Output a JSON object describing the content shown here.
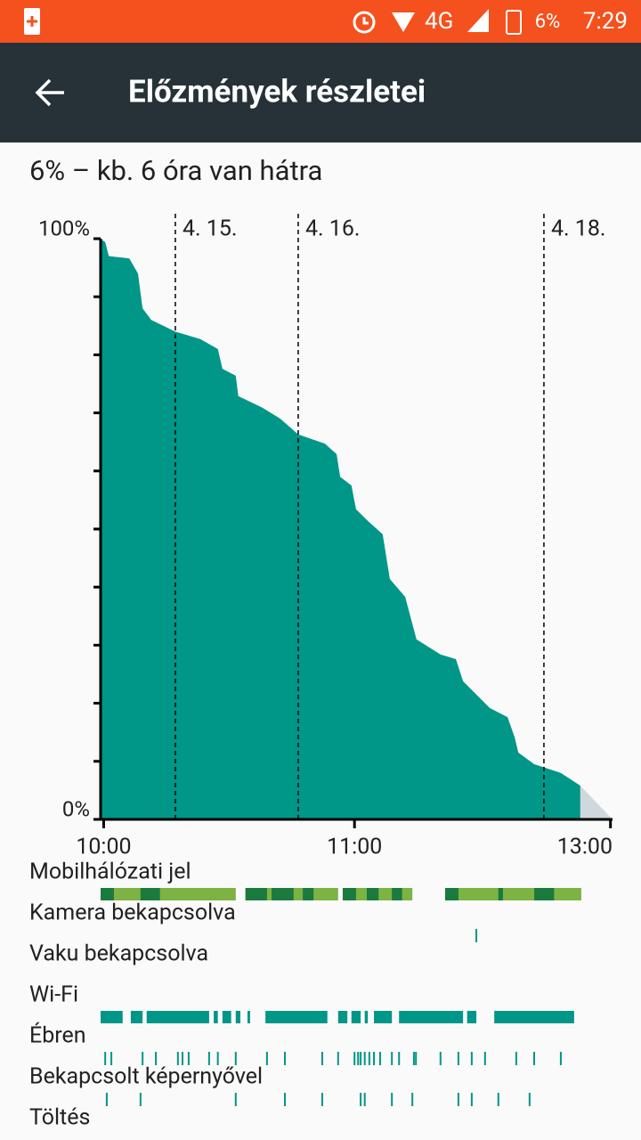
{
  "status_bar": {
    "network": "4G",
    "battery": "6%",
    "time": "7:29"
  },
  "app_bar": {
    "title": "Előzmények részletei"
  },
  "summary": "6% – kb. 6 óra van hátra",
  "chart_data": {
    "type": "area",
    "color": "#009688",
    "x": [
      -14.6,
      -13.7,
      -13,
      -9,
      -7.3,
      -6.4,
      -4.7,
      0,
      4.9,
      8.3,
      9.2,
      11.8,
      12.3,
      17,
      20.5,
      24,
      29.2,
      31.5,
      32.2,
      34.4,
      35.3,
      37.6,
      40.5,
      41.9,
      44.9,
      47.1,
      51.8,
      54.8,
      56.2,
      61.4,
      64.9,
      66.3,
      67,
      70.1,
      75.3,
      79.1
    ],
    "values": [
      100,
      99.4,
      97,
      96.6,
      94,
      88,
      86,
      84,
      82.7,
      81,
      77.6,
      76.4,
      72.9,
      70.9,
      69,
      66.3,
      64.7,
      62.9,
      59,
      57.5,
      53.4,
      51.4,
      49.1,
      41.4,
      38.3,
      31,
      28.4,
      27.6,
      23.8,
      19.2,
      17.6,
      14.1,
      11.5,
      9.5,
      8,
      5.8
    ],
    "projection": {
      "x": [
        79.1,
        85.4
      ],
      "values": [
        5.8,
        0
      ],
      "color": "#cfd8dc"
    },
    "xlim": [
      -14.6,
      85.4
    ],
    "ylim": [
      0,
      100
    ],
    "yticks": [
      {
        "value": 100,
        "label": "100%"
      },
      {
        "value": 0,
        "label": "0%"
      }
    ],
    "minor_yticks": [
      10,
      20,
      30,
      40,
      50,
      60,
      70,
      80,
      90
    ],
    "xticks": [
      {
        "value": -14,
        "label": "10:00"
      },
      {
        "value": 35,
        "label": "11:00"
      },
      {
        "value": 85,
        "label": "13:00"
      }
    ],
    "markers": [
      {
        "value": 0,
        "label": "4. 15."
      },
      {
        "value": 24,
        "label": "4. 16."
      },
      {
        "value": 72,
        "label": "4. 18."
      }
    ]
  },
  "rows": [
    {
      "label": "Mobilhálózati jel",
      "color": "#7cb342",
      "segments": [
        [
          -14.6,
          11.8
        ],
        [
          13.7,
          31.8
        ],
        [
          32.7,
          46.3
        ],
        [
          52.7,
          79.3
        ]
      ],
      "strong_color": "#1b7a3e",
      "strong_segments": [
        [
          -14.6,
          -12
        ],
        [
          -6.8,
          -3
        ],
        [
          13.7,
          17.9
        ],
        [
          18.8,
          23.1
        ],
        [
          24.9,
          27
        ],
        [
          32.7,
          35.3
        ],
        [
          37.4,
          39.7
        ],
        [
          42.3,
          44.3
        ],
        [
          52.7,
          55.3
        ],
        [
          63.1,
          64
        ],
        [
          70.1,
          74
        ]
      ]
    },
    {
      "label": "Kamera bekapcsolva",
      "color": "#009688",
      "ticks": [
        58.8
      ]
    },
    {
      "label": "Vaku bekapcsolva"
    },
    {
      "label": "Wi-Fi",
      "color": "#009688",
      "segments": [
        [
          -14.6,
          -10.3
        ],
        [
          -8.7,
          -6.4
        ],
        [
          -5.6,
          6.6
        ],
        [
          7.5,
          8.3
        ],
        [
          9.2,
          10.9
        ],
        [
          11.8,
          12.7
        ],
        [
          14.1,
          14.6
        ],
        [
          17.6,
          29.7
        ],
        [
          31.8,
          33.6
        ],
        [
          34.4,
          36.2
        ],
        [
          37,
          37.6
        ],
        [
          38.8,
          42.3
        ],
        [
          43.7,
          56.2
        ],
        [
          57,
          58.8
        ],
        [
          62.3,
          77.9
        ]
      ]
    },
    {
      "label": "Ébren",
      "color": "#009688",
      "ticks": [
        -13.7,
        -12.5,
        -6.4,
        -3.8,
        0.5,
        1.4,
        2.6,
        6.6,
        8.3,
        11.8,
        17.9,
        21.4,
        28.7,
        31.8,
        35,
        35.7,
        36.2,
        37,
        37.9,
        38.8,
        40,
        42.3,
        43.7,
        46.6,
        47,
        51.8,
        55.3,
        57.9,
        60.5,
        66.6,
        70.1,
        75.3
      ]
    },
    {
      "label": "Bekapcsolt képernyővel",
      "color": "#009688",
      "ticks": [
        -13.4,
        -6.8,
        11.8,
        21.4,
        28.7,
        36.2,
        37,
        42.3,
        46.3,
        55.3,
        57.9,
        63.1,
        69.2
      ]
    },
    {
      "label": "Töltés"
    }
  ]
}
